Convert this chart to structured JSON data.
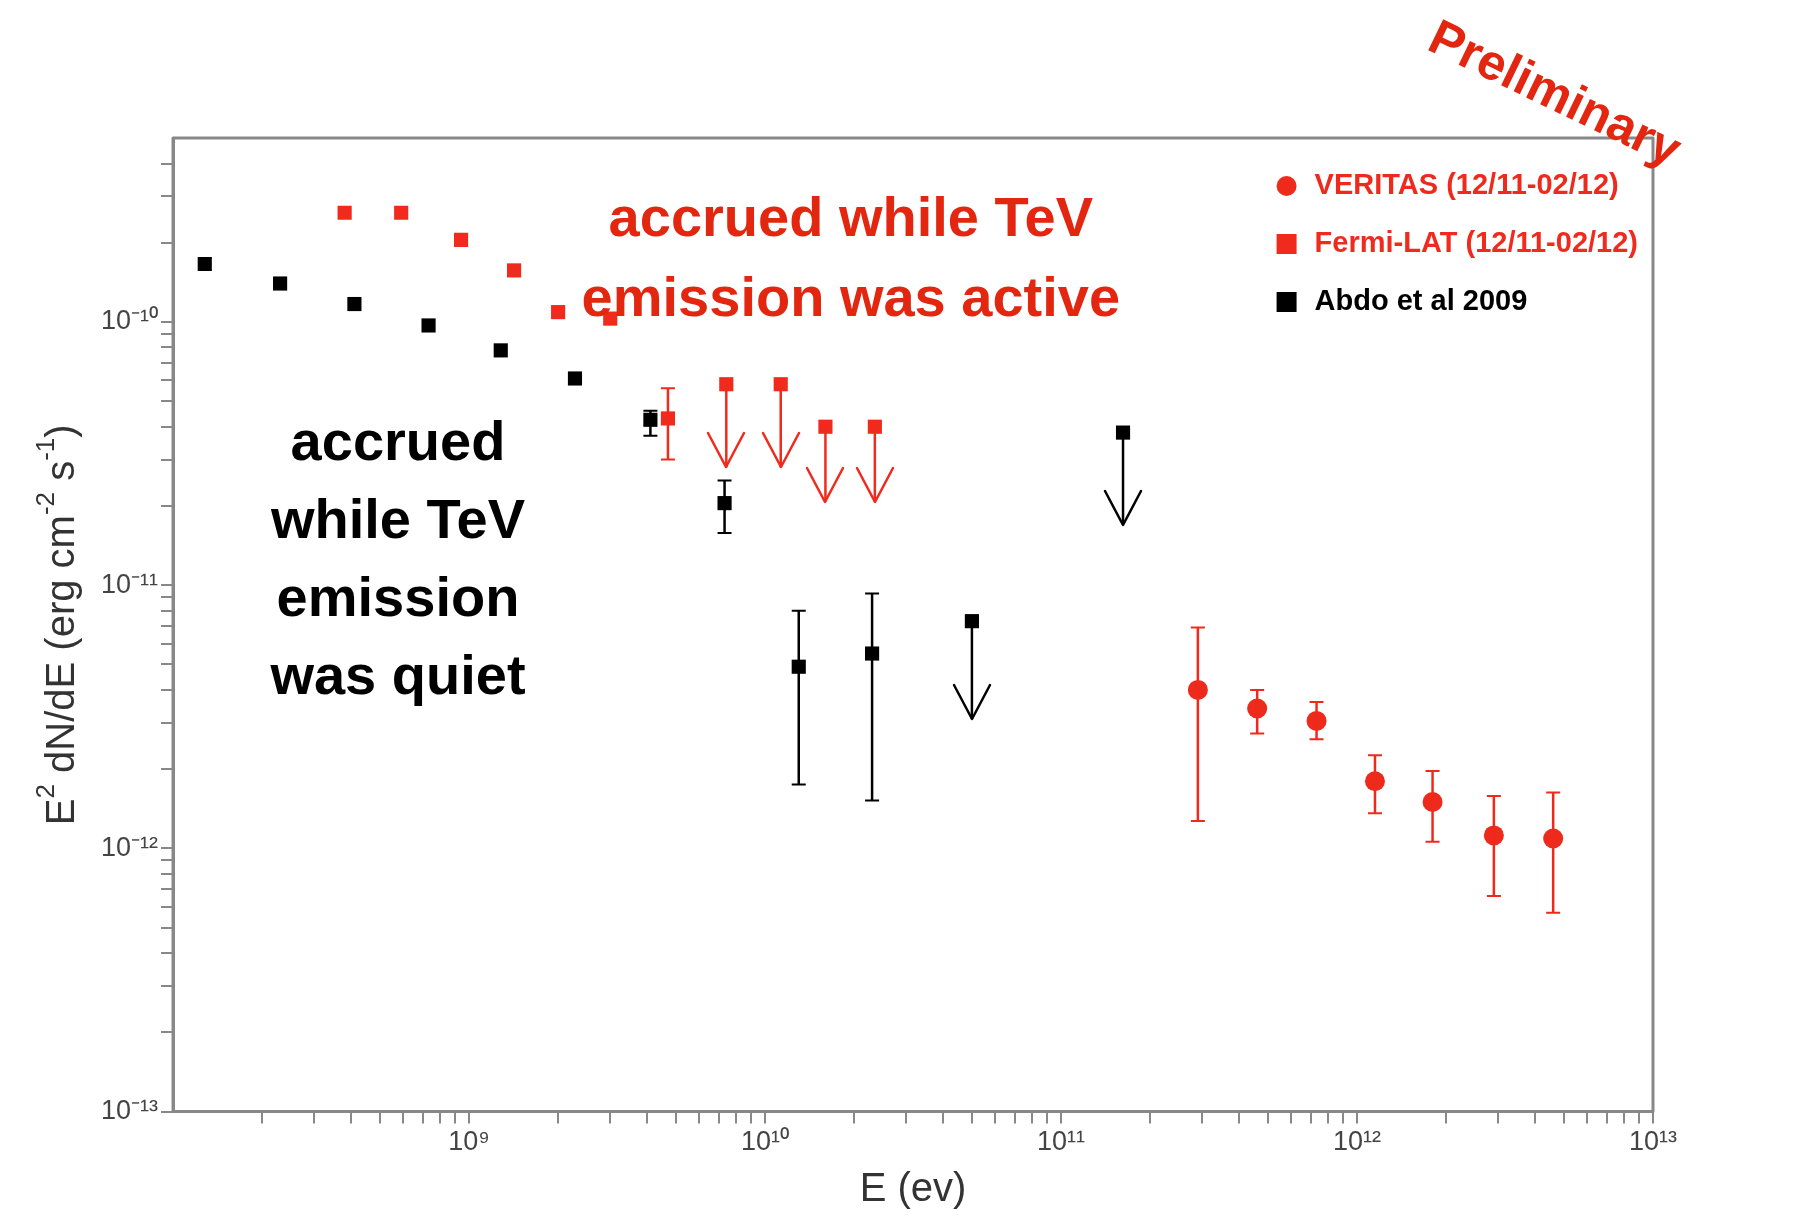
{
  "chart_data": {
    "type": "scatter",
    "xlabel": "E (ev)",
    "ylabel": "E$^{2}$ dN/dE (erg cm$^{-2}$ s$^{-1}$)",
    "annotations": [
      "accrued while TeV emission was active",
      "accrued while TeV emission was quiet",
      "Preliminary"
    ],
    "log": "xy",
    "grid": false,
    "legend": "top right",
    "xlim": [
      100000000.0,
      10000000000000.0
    ],
    "ylim": [
      1e-13,
      5e-10
    ],
    "xticks": [
      {
        "value": 200000000.0,
        "label": null
      },
      {
        "value": 300000000.0,
        "label": null
      },
      {
        "value": 400000000.0,
        "label": null
      },
      {
        "value": 500000000.0,
        "label": null
      },
      {
        "value": 600000000.0,
        "label": null
      },
      {
        "value": 700000000.0,
        "label": null
      },
      {
        "value": 800000000.0,
        "label": null
      },
      {
        "value": 900000000.0,
        "label": null
      },
      {
        "value": 1000000000.0,
        "label": "10⁹"
      },
      {
        "value": 2000000000.0,
        "label": null
      },
      {
        "value": 3000000000.0,
        "label": null
      },
      {
        "value": 4000000000.0,
        "label": null
      },
      {
        "value": 5000000000.0,
        "label": null
      },
      {
        "value": 6000000000.0,
        "label": null
      },
      {
        "value": 7000000000.0,
        "label": null
      },
      {
        "value": 8000000000.0,
        "label": null
      },
      {
        "value": 9000000000.0,
        "label": null
      },
      {
        "value": 10000000000.0,
        "label": "10¹⁰"
      },
      {
        "value": 20000000000.0,
        "label": null
      },
      {
        "value": 30000000000.0,
        "label": null
      },
      {
        "value": 40000000000.0,
        "label": null
      },
      {
        "value": 50000000000.0,
        "label": null
      },
      {
        "value": 60000000000.0,
        "label": null
      },
      {
        "value": 70000000000.0,
        "label": null
      },
      {
        "value": 80000000000.0,
        "label": null
      },
      {
        "value": 90000000000.0,
        "label": null
      },
      {
        "value": 100000000000.0,
        "label": "10¹¹"
      },
      {
        "value": 200000000000.0,
        "label": null
      },
      {
        "value": 300000000000.0,
        "label": null
      },
      {
        "value": 400000000000.0,
        "label": null
      },
      {
        "value": 500000000000.0,
        "label": null
      },
      {
        "value": 600000000000.0,
        "label": null
      },
      {
        "value": 700000000000.0,
        "label": null
      },
      {
        "value": 800000000000.0,
        "label": null
      },
      {
        "value": 900000000000.0,
        "label": null
      },
      {
        "value": 1000000000000.0,
        "label": "10¹²"
      },
      {
        "value": 2000000000000.0,
        "label": null
      },
      {
        "value": 3000000000000.0,
        "label": null
      },
      {
        "value": 4000000000000.0,
        "label": null
      },
      {
        "value": 5000000000000.0,
        "label": null
      },
      {
        "value": 6000000000000.0,
        "label": null
      },
      {
        "value": 7000000000000.0,
        "label": null
      },
      {
        "value": 8000000000000.0,
        "label": null
      },
      {
        "value": 9000000000000.0,
        "label": null
      },
      {
        "value": 10000000000000.0,
        "label": "10¹³"
      }
    ],
    "yticks": [
      {
        "value": 1e-13,
        "label": "10⁻¹³"
      },
      {
        "value": 2e-13,
        "label": null
      },
      {
        "value": 3e-13,
        "label": null
      },
      {
        "value": 4e-13,
        "label": null
      },
      {
        "value": 5e-13,
        "label": null
      },
      {
        "value": 6e-13,
        "label": null
      },
      {
        "value": 7e-13,
        "label": null
      },
      {
        "value": 8e-13,
        "label": null
      },
      {
        "value": 9e-13,
        "label": null
      },
      {
        "value": 1e-12,
        "label": "10⁻¹²"
      },
      {
        "value": 2e-12,
        "label": null
      },
      {
        "value": 3e-12,
        "label": null
      },
      {
        "value": 4e-12,
        "label": null
      },
      {
        "value": 5e-12,
        "label": null
      },
      {
        "value": 6e-12,
        "label": null
      },
      {
        "value": 7e-12,
        "label": null
      },
      {
        "value": 8e-12,
        "label": null
      },
      {
        "value": 9e-12,
        "label": null
      },
      {
        "value": 1e-11,
        "label": "10⁻¹¹"
      },
      {
        "value": 2e-11,
        "label": null
      },
      {
        "value": 3e-11,
        "label": null
      },
      {
        "value": 4e-11,
        "label": null
      },
      {
        "value": 5e-11,
        "label": null
      },
      {
        "value": 6e-11,
        "label": null
      },
      {
        "value": 7e-11,
        "label": null
      },
      {
        "value": 8e-11,
        "label": null
      },
      {
        "value": 9e-11,
        "label": null
      },
      {
        "value": 1e-10,
        "label": "10⁻¹⁰"
      },
      {
        "value": 2e-10,
        "label": null
      },
      {
        "value": 3e-10,
        "label": null
      },
      {
        "value": 4e-10,
        "label": null
      }
    ],
    "series": [
      {
        "name": "VERITAS (12/11-02/12)",
        "color": "#ee2a1c",
        "marker": "circle",
        "x": [
          290000000000.0,
          460000000000.0,
          730000000000.0,
          1150000000000.0,
          1800000000000.0,
          2900000000000.0,
          4600000000000.0
        ],
        "values": [
          4e-12,
          3.4e-12,
          3.05e-12,
          1.8e-12,
          1.5e-12,
          1.12e-12,
          1.09e-12
        ],
        "errors": [
          [
            1.27e-12,
            6.9e-12
          ],
          [
            2.73e-12,
            4e-12
          ],
          [
            2.6e-12,
            3.6e-12
          ],
          [
            1.36e-12,
            2.26e-12
          ],
          [
            1.06e-12,
            1.97e-12
          ],
          [
            6.6e-13,
            1.58e-12
          ],
          [
            5.7e-13,
            1.63e-12
          ]
        ]
      },
      {
        "name": "Fermi-LAT (12/11-02/12)",
        "color": "#f02a1c",
        "marker": "square",
        "x": [
          380000000.0,
          590000000.0,
          940000000.0,
          1420000000.0,
          2000000000.0,
          3000000000.0,
          4700000000.0
        ],
        "values": [
          2.6e-10,
          2.6e-10,
          2.05e-10,
          1.57e-10,
          1.09e-10,
          1.03e-10,
          4.3e-11
        ],
        "errors": [
          null,
          null,
          null,
          null,
          null,
          null,
          [
            3e-11,
            5.6e-11
          ]
        ]
      },
      {
        "color": "#f02a1c",
        "marker": "square",
        "x": [
          7400000000.0,
          11300000000.0,
          16000000000.0,
          23500000000.0
        ],
        "values": [
          5.8e-11,
          5.8e-11,
          4e-11,
          4e-11
        ],
        "errors": [
          [
            2.8e-11,
            5.8e-11
          ],
          [
            2.8e-11,
            5.8e-11
          ],
          [
            2.07e-11,
            4e-11
          ],
          [
            2.07e-11,
            4e-11
          ]
        ]
      },
      {
        "name": "Abdo et al 2009",
        "color": "#000000",
        "marker": "square",
        "x": [
          128000000.0,
          230000000.0,
          410000000.0,
          730000000.0,
          1280000000.0,
          2280000000.0,
          4100000000.0,
          7300000000.0,
          13000000000.0,
          23000000000.0
        ],
        "values": [
          1.66e-10,
          1.4e-10,
          1.17e-10,
          9.7e-11,
          7.8e-11,
          6.1e-11,
          4.25e-11,
          2.05e-11,
          4.9e-12,
          5.5e-12
        ],
        "errors": [
          null,
          null,
          null,
          null,
          null,
          null,
          [
            3.7e-11,
            4.6e-11
          ],
          [
            1.58e-11,
            2.5e-11
          ],
          [
            1.75e-12,
            8e-12
          ],
          [
            1.52e-12,
            9.3e-12
          ]
        ]
      },
      {
        "color": "#000000",
        "marker": "square",
        "x": [
          50000000000.0,
          162000000000.0
        ],
        "values": [
          7.3e-12,
          3.8e-11
        ],
        "errors": [
          [
            3.1e-12,
            7.3e-12
          ],
          [
            1.7e-11,
            3.8e-11
          ]
        ]
      }
    ]
  }
}
